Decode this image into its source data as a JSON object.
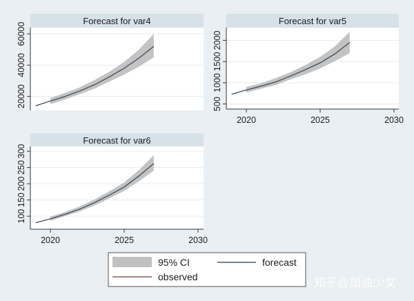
{
  "chart_data": [
    {
      "type": "line",
      "title": "Forecast for var4",
      "xlabel": "",
      "ylabel": "",
      "x": [
        2019,
        2020,
        2021,
        2022,
        2023,
        2024,
        2025,
        2026,
        2027
      ],
      "series": [
        {
          "name": "forecast",
          "values": [
            14000,
            17000,
            20000,
            23500,
            27500,
            32500,
            38000,
            44500,
            52000
          ]
        },
        {
          "name": "95% CI lower",
          "values": [
            null,
            15000,
            18000,
            21500,
            25000,
            29500,
            34000,
            39000,
            45000
          ]
        },
        {
          "name": "95% CI upper",
          "values": [
            null,
            19000,
            22200,
            25800,
            30500,
            35800,
            42000,
            50000,
            60000
          ]
        }
      ],
      "yticks": [
        20000,
        40000,
        60000
      ],
      "ylim": [
        11000,
        64000
      ],
      "xticks": [
        2020,
        2025,
        2030
      ],
      "xticks_visible": false,
      "xlim": [
        2018.5,
        2030
      ]
    },
    {
      "type": "line",
      "title": "Forecast for var5",
      "xlabel": "",
      "ylabel": "",
      "x": [
        2019,
        2020,
        2021,
        2022,
        2023,
        2024,
        2025,
        2026,
        2027
      ],
      "series": [
        {
          "name": "forecast",
          "values": [
            730,
            830,
            920,
            1020,
            1160,
            1310,
            1470,
            1680,
            1950
          ]
        },
        {
          "name": "95% CI lower",
          "values": [
            null,
            770,
            860,
            950,
            1080,
            1200,
            1340,
            1510,
            1700
          ]
        },
        {
          "name": "95% CI upper",
          "values": [
            null,
            900,
            990,
            1110,
            1250,
            1420,
            1610,
            1860,
            2200
          ]
        }
      ],
      "yticks": [
        500,
        1000,
        1500,
        2000
      ],
      "ylim": [
        380,
        2300
      ],
      "xticks": [
        2020,
        2025,
        2030
      ],
      "xlim": [
        2018.5,
        2030.3
      ]
    },
    {
      "type": "line",
      "title": "Forecast for var6",
      "xlabel": "",
      "ylabel": "",
      "x": [
        2019,
        2020,
        2021,
        2022,
        2023,
        2024,
        2025,
        2026,
        2027
      ],
      "series": [
        {
          "name": "forecast",
          "values": [
            80,
            92,
            106,
            122,
            142,
            165,
            190,
            224,
            262
          ]
        },
        {
          "name": "95% CI lower",
          "values": [
            null,
            86,
            100,
            115,
            133,
            155,
            178,
            208,
            240
          ]
        },
        {
          "name": "95% CI upper",
          "values": [
            null,
            99,
            113,
            130,
            152,
            177,
            204,
            242,
            288
          ]
        }
      ],
      "yticks": [
        100,
        150,
        200,
        250,
        300
      ],
      "ylim": [
        60,
        315
      ],
      "xticks": [
        2020,
        2025,
        2030
      ],
      "xlim": [
        2018.5,
        2030
      ]
    }
  ],
  "legend": {
    "items": [
      {
        "label": "95% CI",
        "kind": "area",
        "color": "#c0c0c0"
      },
      {
        "label": "forecast",
        "kind": "line",
        "color": "#4a5a6a"
      },
      {
        "label": "observed",
        "kind": "line",
        "color": "#8b5a5a"
      }
    ]
  },
  "watermark": "知乎@加油少女",
  "colors": {
    "background": "#e9eff2",
    "plot_bg": "#ffffff",
    "title_strip": "#d6e1e8",
    "grid": "#eaeaea",
    "ci": "#c0c0c0",
    "forecast": "#3c4a5a",
    "observed": "#8b5a5a"
  }
}
